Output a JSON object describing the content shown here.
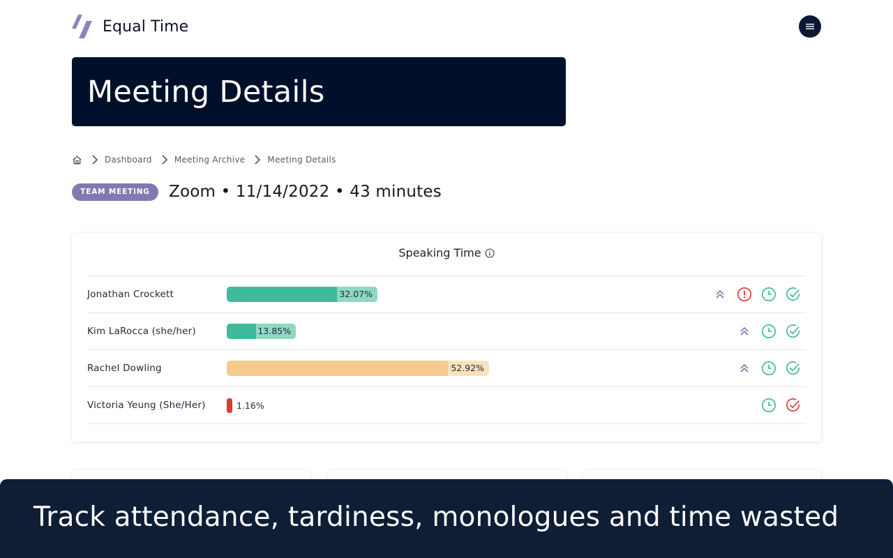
{
  "header": {
    "brand_name": "Equal Time",
    "logo_icon": "brand-slashes-icon",
    "menu_icon": "hamburger-menu-icon"
  },
  "banner": {
    "title": "Meeting Details"
  },
  "breadcrumb": {
    "home_icon": "home-icon",
    "items": [
      "Dashboard",
      "Meeting Archive",
      "Meeting Details"
    ]
  },
  "meeting": {
    "badge": "TEAM MEETING",
    "summary": "Zoom • 11/14/2022 • 43 minutes"
  },
  "speaking_time": {
    "title": "Speaking Time",
    "participants": [
      {
        "name": "Jonathan Crockett",
        "percent_label": "32.07%",
        "percent": 32.07,
        "color": "#3dbb9b",
        "icons": [
          "chevrons-up-icon",
          "alert-circle-icon",
          "clock-icon",
          "check-circle-icon"
        ]
      },
      {
        "name": "Kim LaRocca (she/her)",
        "percent_label": "13.85%",
        "percent": 13.85,
        "color": "#3dbb9b",
        "icons": [
          "chevrons-up-icon",
          "clock-icon",
          "check-circle-icon"
        ]
      },
      {
        "name": "Rachel Dowling",
        "percent_label": "52.92%",
        "percent": 52.92,
        "color": "#f3cb8f",
        "icons": [
          "chevrons-up-icon",
          "clock-icon",
          "check-circle-icon"
        ]
      },
      {
        "name": "Victoria Yeung (She/Her)",
        "percent_label": "1.16%",
        "percent": 1.16,
        "color": "#dc3b32",
        "icons": [
          "clock-icon",
          "check-circle-red-icon"
        ]
      }
    ]
  },
  "caption": {
    "text": "Track attendance, tardiness, monologues and time wasted"
  },
  "colors": {
    "banner_bg": "#00102b",
    "badge_bg": "#7f7bb0",
    "green": "#3dbb9b",
    "orange": "#f3cb8f",
    "red": "#dc3b32",
    "caption_bg": "#0f1d35"
  }
}
